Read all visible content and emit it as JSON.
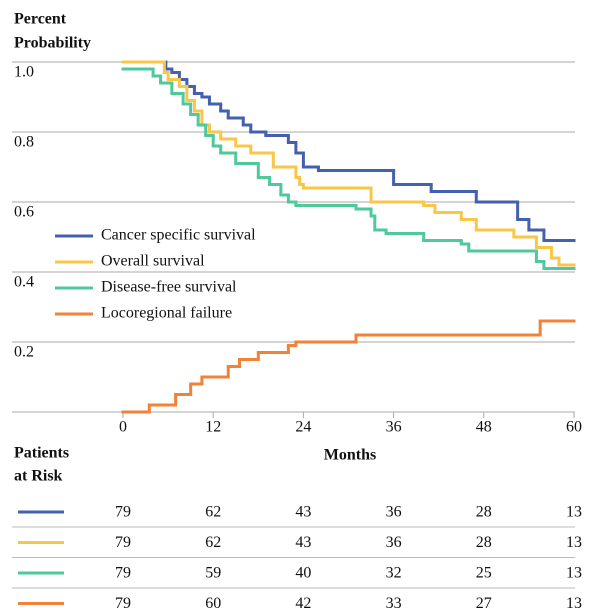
{
  "chart_data": {
    "type": "step",
    "y_label": [
      "Percent",
      "Probability"
    ],
    "x_label": "Months",
    "xlim": [
      0,
      60
    ],
    "xticks": [
      0,
      12,
      24,
      36,
      48,
      60
    ],
    "ylim": [
      0,
      1
    ],
    "yticks": [
      0.2,
      0.4,
      0.6,
      0.8,
      {
        "value": 1,
        "label": "1.0"
      }
    ],
    "grid": true,
    "legend": "left",
    "series": [
      {
        "name": "Cancer specific survival",
        "color": "#4361ad",
        "x": [
          0,
          5.7,
          6.5,
          7.5,
          8.5,
          9.5,
          10.5,
          11.5,
          13,
          14,
          16,
          17,
          19,
          22,
          23,
          24,
          26,
          36,
          41,
          47,
          52.5,
          54,
          56,
          60
        ],
        "values": [
          1.0,
          0.98,
          0.97,
          0.95,
          0.93,
          0.91,
          0.9,
          0.88,
          0.86,
          0.84,
          0.82,
          0.8,
          0.79,
          0.77,
          0.74,
          0.7,
          0.69,
          0.65,
          0.63,
          0.6,
          0.55,
          0.52,
          0.49,
          0.49
        ]
      },
      {
        "name": "Overall survival",
        "color": "#f8c74a",
        "x": [
          0,
          5.5,
          6,
          7.5,
          8.5,
          9.5,
          10.5,
          11.5,
          13,
          15,
          17,
          20,
          23,
          23.5,
          24,
          29,
          33,
          40,
          41.5,
          45,
          47,
          52,
          55,
          57,
          58,
          60
        ],
        "values": [
          1.0,
          0.97,
          0.95,
          0.93,
          0.89,
          0.86,
          0.82,
          0.8,
          0.78,
          0.76,
          0.74,
          0.7,
          0.67,
          0.65,
          0.64,
          0.64,
          0.6,
          0.59,
          0.57,
          0.55,
          0.52,
          0.5,
          0.47,
          0.44,
          0.42,
          0.42
        ]
      },
      {
        "name": "Disease-free survival",
        "color": "#4fc99b",
        "x": [
          0,
          4,
          5,
          6.5,
          8,
          9,
          10,
          11,
          12,
          13,
          15,
          18,
          19.5,
          21,
          22,
          23,
          31,
          33,
          33.5,
          35,
          40,
          45,
          46,
          55,
          56,
          60
        ],
        "values": [
          0.98,
          0.96,
          0.94,
          0.91,
          0.88,
          0.85,
          0.82,
          0.79,
          0.76,
          0.74,
          0.71,
          0.67,
          0.65,
          0.62,
          0.6,
          0.59,
          0.58,
          0.56,
          0.52,
          0.51,
          0.49,
          0.48,
          0.46,
          0.43,
          0.41,
          0.41
        ]
      },
      {
        "name": "Locoregional failure",
        "color": "#f2823a",
        "x": [
          0,
          3.5,
          7,
          9,
          10.5,
          14,
          15.5,
          18,
          22,
          23,
          31,
          55.5,
          60
        ],
        "values": [
          0,
          0.02,
          0.05,
          0.08,
          0.1,
          0.13,
          0.15,
          0.17,
          0.19,
          0.2,
          0.22,
          0.26,
          0.26
        ]
      }
    ]
  },
  "risk_table": {
    "title": [
      "Patients",
      "at Risk"
    ],
    "rows": [
      [
        79,
        62,
        43,
        36,
        28,
        13
      ],
      [
        79,
        62,
        43,
        36,
        28,
        13
      ],
      [
        79,
        59,
        40,
        32,
        25,
        13
      ],
      [
        79,
        60,
        42,
        33,
        27,
        13
      ]
    ]
  }
}
